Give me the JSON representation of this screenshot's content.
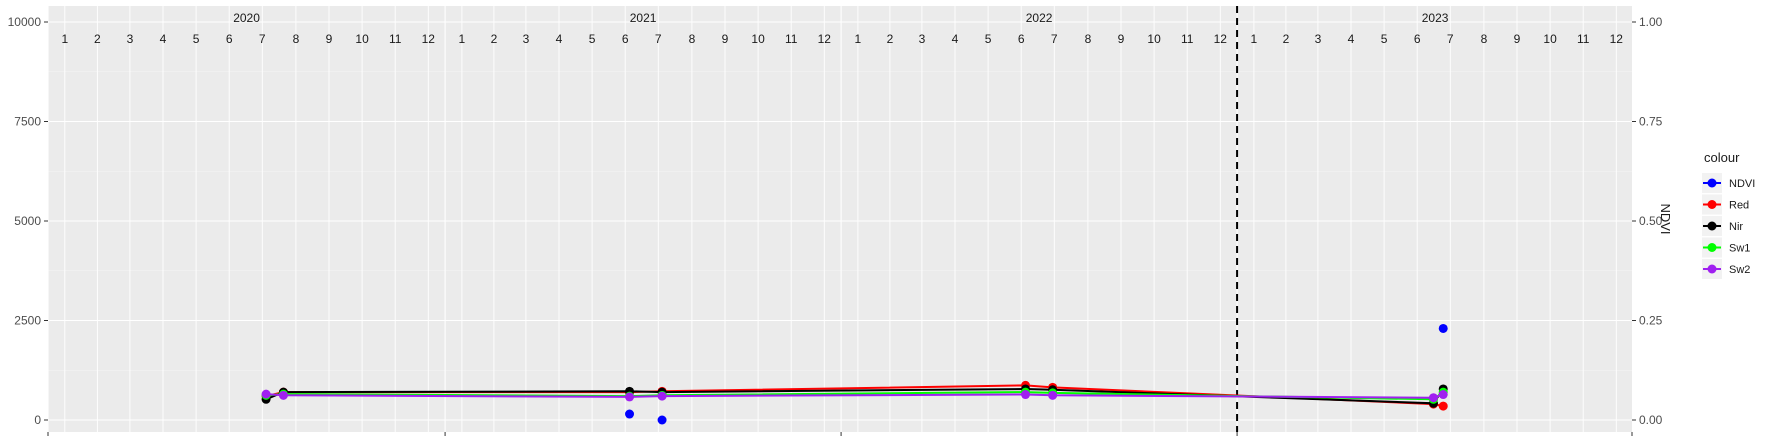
{
  "chart_data": {
    "type": "line",
    "y_left": {
      "lim": [
        0,
        10000
      ],
      "ticks": [
        "0",
        "2500",
        "5000",
        "7500",
        "10000"
      ],
      "tick_values": [
        0,
        2500,
        5000,
        7500,
        10000
      ]
    },
    "y_right": {
      "label": "NDVI",
      "lim": [
        0,
        1
      ],
      "ticks": [
        "0.00",
        "0.25",
        "0.50",
        "0.75",
        "1.00"
      ],
      "tick_values": [
        0,
        0.25,
        0.5,
        0.75,
        1.0
      ]
    },
    "x_range": [
      "2020-01-01",
      "2023-12-31"
    ],
    "years": [
      {
        "label": "2020",
        "year": 2020
      },
      {
        "label": "2021",
        "year": 2021
      },
      {
        "label": "2022",
        "year": 2022
      },
      {
        "label": "2023",
        "year": 2023
      }
    ],
    "month_labels": [
      "1",
      "2",
      "3",
      "4",
      "5",
      "6",
      "7",
      "8",
      "9",
      "10",
      "11",
      "12"
    ],
    "vline": "2023-01-01",
    "grid": true,
    "legend": {
      "title": "colour",
      "position": "right"
    },
    "series": [
      {
        "name": "NDVI",
        "color": "#0000ff",
        "axis": "right",
        "line": false,
        "x": [
          "2021-06-20",
          "2021-07-20",
          "2023-07-10"
        ],
        "y": [
          0.015,
          0.0,
          0.23
        ]
      },
      {
        "name": "Red",
        "color": "#ff0000",
        "axis": "left",
        "line": true,
        "x": [
          "2020-07-20",
          "2020-08-05",
          "2021-06-20",
          "2021-07-20",
          "2022-06-20",
          "2022-07-15",
          "2023-07-01",
          "2023-07-10"
        ],
        "y": [
          600,
          700,
          700,
          720,
          870,
          820,
          400,
          350
        ]
      },
      {
        "name": "Nir",
        "color": "#000000",
        "axis": "left",
        "line": true,
        "x": [
          "2020-07-20",
          "2020-08-05",
          "2021-06-20",
          "2021-07-20",
          "2022-06-20",
          "2022-07-15",
          "2023-07-01",
          "2023-07-10"
        ],
        "y": [
          520,
          700,
          720,
          700,
          780,
          760,
          420,
          780
        ]
      },
      {
        "name": "Sw1",
        "color": "#00ff00",
        "axis": "left",
        "line": true,
        "x": [
          "2020-07-20",
          "2020-08-05",
          "2021-06-20",
          "2021-07-20",
          "2022-06-20",
          "2022-07-15",
          "2023-07-01",
          "2023-07-10"
        ],
        "y": [
          620,
          650,
          600,
          620,
          700,
          680,
          520,
          700
        ]
      },
      {
        "name": "Sw2",
        "color": "#a020f0",
        "axis": "left",
        "line": true,
        "x": [
          "2020-07-20",
          "2020-08-05",
          "2021-06-20",
          "2021-07-20",
          "2022-06-20",
          "2022-07-15",
          "2023-07-01",
          "2023-07-10"
        ],
        "y": [
          650,
          620,
          580,
          600,
          640,
          620,
          560,
          640
        ]
      }
    ]
  }
}
